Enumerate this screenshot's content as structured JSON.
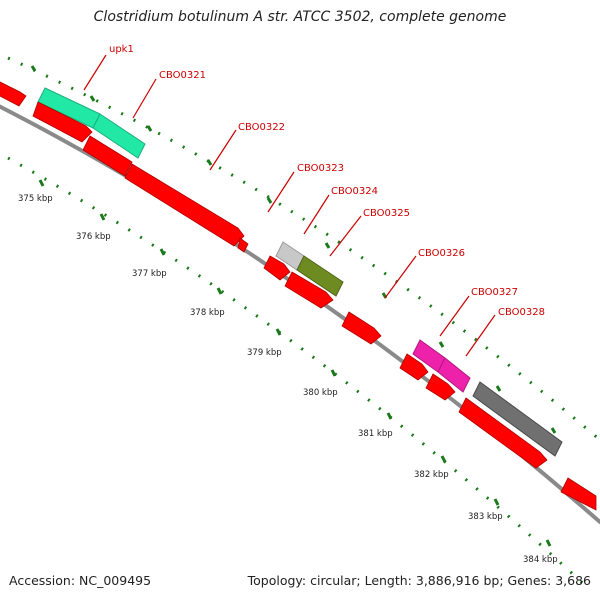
{
  "title": "Clostridium botulinum A str. ATCC 3502, complete genome",
  "accession": "Accession: NC_009495",
  "topology": "Topology: circular; Length: 3,886,916 bp; Genes: 3,686",
  "colors": {
    "backbone": "#8a8a8a",
    "cds": "#ff0000",
    "gene_label": "#cc0000",
    "tick": "#1a7a1a",
    "feature_teal": "#22e8a6",
    "feature_silver": "#c8c8c8",
    "feature_olive": "#6e8b22",
    "feature_magenta": "#ee22aa",
    "feature_gray": "#707070"
  },
  "gene_labels": [
    {
      "text": "upk1"
    },
    {
      "text": "CBO0321"
    },
    {
      "text": "CBO0322"
    },
    {
      "text": "CBO0323"
    },
    {
      "text": "CBO0324"
    },
    {
      "text": "CBO0325"
    },
    {
      "text": "CBO0326"
    },
    {
      "text": "CBO0327"
    },
    {
      "text": "CBO0328"
    }
  ],
  "kbp_ticks": [
    {
      "text": "375 kbp"
    },
    {
      "text": "376 kbp"
    },
    {
      "text": "377 kbp"
    },
    {
      "text": "378 kbp"
    },
    {
      "text": "379 kbp"
    },
    {
      "text": "380 kbp"
    },
    {
      "text": "381 kbp"
    },
    {
      "text": "382 kbp"
    },
    {
      "text": "383 kbp"
    },
    {
      "text": "384 kbp"
    }
  ]
}
